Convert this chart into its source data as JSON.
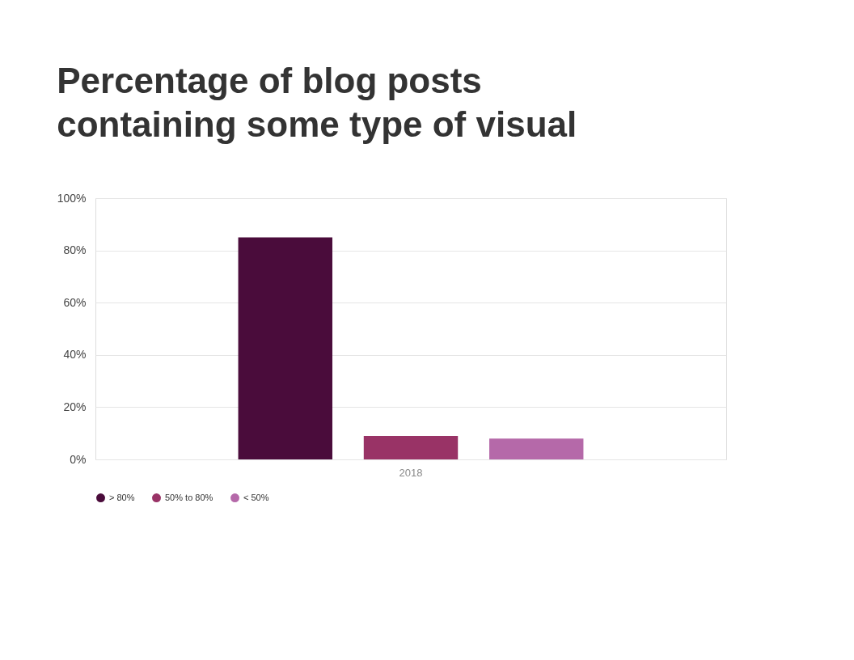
{
  "chart_data": {
    "type": "bar",
    "title": "Percentage of blog posts\ncontaining some type of visual",
    "categories": [
      "2018"
    ],
    "series": [
      {
        "name": "> 80%",
        "color": "#4a0c3b",
        "values": [
          85
        ]
      },
      {
        "name": "50% to 80%",
        "color": "#993366",
        "values": [
          9
        ]
      },
      {
        "name": "< 50%",
        "color": "#b569a9",
        "values": [
          8
        ]
      }
    ],
    "ylim": [
      0,
      100
    ],
    "yticks": [
      {
        "value": 0,
        "label": "0%"
      },
      {
        "value": 20,
        "label": "20%"
      },
      {
        "value": 40,
        "label": "40%"
      },
      {
        "value": 60,
        "label": "60%"
      },
      {
        "value": 80,
        "label": "80%"
      },
      {
        "value": 100,
        "label": "100%"
      }
    ],
    "grid": "y",
    "legend": "bottom"
  }
}
